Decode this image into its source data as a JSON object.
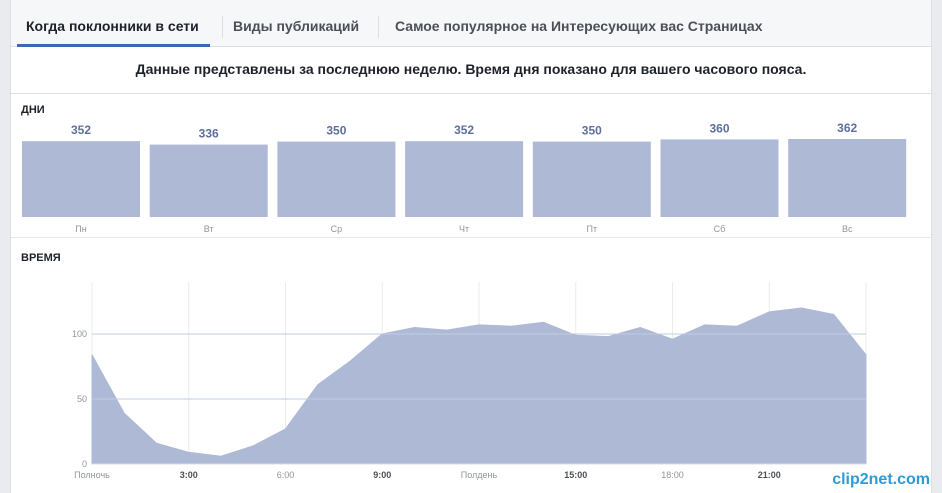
{
  "tabs": [
    {
      "label": "Когда поклонники в сети",
      "active": true
    },
    {
      "label": "Виды публикаций",
      "active": false
    },
    {
      "label": "Самое популярное на Интересующих вас Страницах",
      "active": false
    }
  ],
  "info_text": "Данные представлены за последнюю неделю. Время дня показано для вашего часового пояса.",
  "days_section": {
    "title": "ДНИ"
  },
  "time_section": {
    "title": "ВРЕМЯ"
  },
  "colors": {
    "bar": "#aeb9d5",
    "value_label": "#5d6f9c",
    "area": "#aeb9d5",
    "tab_accent": "#4267b2"
  },
  "chart_data": [
    {
      "type": "bar",
      "categories": [
        "Пн",
        "Вт",
        "Ср",
        "Чт",
        "Пт",
        "Сб",
        "Вс"
      ],
      "values": [
        352,
        336,
        350,
        352,
        350,
        360,
        362
      ]
    },
    {
      "type": "area",
      "x": [
        0,
        1,
        2,
        3,
        4,
        5,
        6,
        7,
        8,
        9,
        10,
        11,
        12,
        13,
        14,
        15,
        16,
        17,
        18,
        19,
        20,
        21,
        22,
        23,
        24
      ],
      "values": [
        84,
        39,
        16,
        9,
        6,
        14,
        27,
        61,
        79,
        100,
        105,
        103,
        107,
        106,
        109,
        99,
        98,
        105,
        96,
        107,
        106,
        117,
        120,
        115,
        84
      ],
      "x_tick_labels": [
        "Полночь",
        "3:00",
        "6:00",
        "9:00",
        "Полдень",
        "15:00",
        "18:00",
        "21:00"
      ],
      "y_ticks": [
        0,
        50,
        100
      ],
      "ylim": [
        0,
        140
      ],
      "grid": true
    }
  ],
  "watermark": "clip2net.com"
}
